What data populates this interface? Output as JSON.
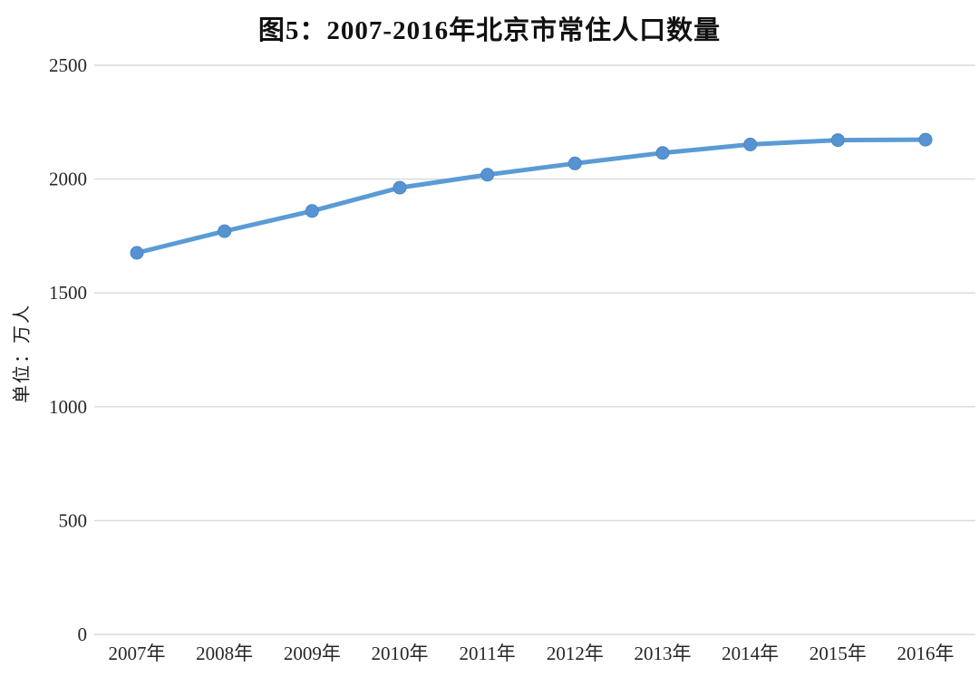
{
  "chart_data": {
    "type": "line",
    "title": "图5：2007-2016年北京市常住人口数量",
    "ylabel": "单位：万人",
    "xlabel": "",
    "categories": [
      "2007年",
      "2008年",
      "2009年",
      "2010年",
      "2011年",
      "2012年",
      "2013年",
      "2014年",
      "2015年",
      "2016年"
    ],
    "series": [
      {
        "values": [
          1676,
          1771,
          1860,
          1962,
          2019,
          2069,
          2115,
          2152,
          2171,
          2173
        ]
      }
    ],
    "ylim": [
      0,
      2500
    ],
    "yticks": [
      0,
      500,
      1000,
      1500,
      2000,
      2500
    ],
    "grid": "horizontal",
    "legend": "none",
    "colors": {
      "line": "#5B9BD5",
      "marker": "#5593D3",
      "marker_edge": "#4A86C0",
      "gridline": "#D9D9D9",
      "text": "#262626"
    }
  }
}
